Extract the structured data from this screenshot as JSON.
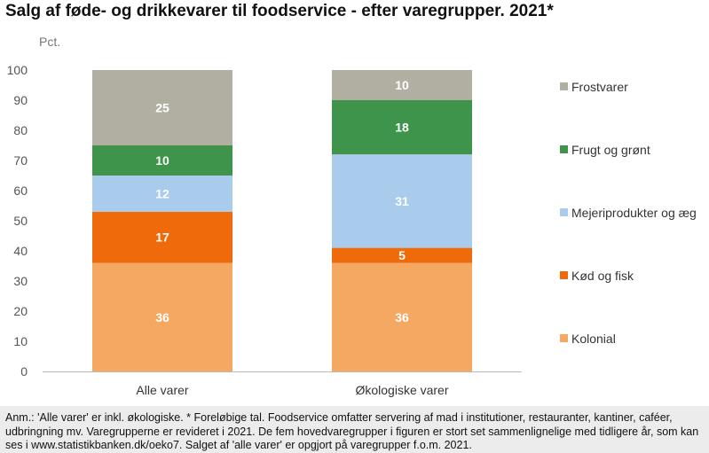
{
  "chart_data": {
    "type": "bar",
    "stacked": true,
    "title": "Salg af føde- og drikkevarer til foodservice - efter varegrupper. 2021*",
    "ylabel": "Pct.",
    "xlabel": "",
    "ylim": [
      0,
      100
    ],
    "yticks": [
      0,
      10,
      20,
      30,
      40,
      50,
      60,
      70,
      80,
      90,
      100
    ],
    "grid": false,
    "legend_position": "right",
    "categories": [
      "Alle varer",
      "Økologiske varer"
    ],
    "series": [
      {
        "name": "Kolonial",
        "values": [
          36,
          36
        ],
        "color": "#f4a862",
        "label_color": "#ffffff"
      },
      {
        "name": "Kød og fisk",
        "values": [
          17,
          5
        ],
        "color": "#ee6a0b",
        "label_color": "#ffffff"
      },
      {
        "name": "Mejeriprodukter og æg",
        "values": [
          12,
          31
        ],
        "color": "#a9ccec",
        "label_color": "#ffffff"
      },
      {
        "name": "Frugt og grønt",
        "values": [
          10,
          18
        ],
        "color": "#3e944a",
        "label_color": "#ffffff"
      },
      {
        "name": "Frostvarer",
        "values": [
          25,
          10
        ],
        "color": "#b1afa1",
        "label_color": "#ffffff"
      }
    ]
  },
  "footnote": "Anm.: 'Alle varer' er inkl. økologiske. * Foreløbige tal. Foodservice omfatter servering af mad i institutioner, restauranter, kantiner, caféer, udbringning mv. Varegrupperne er revideret i 2021. De fem hovedvaregrupper i figuren er stort set sammenlignelige med tidligere år, som kan ses i www.statistikbanken.dk/oeko7. Salget af 'alle varer' er opgjort på varegrupper f.o.m. 2021."
}
